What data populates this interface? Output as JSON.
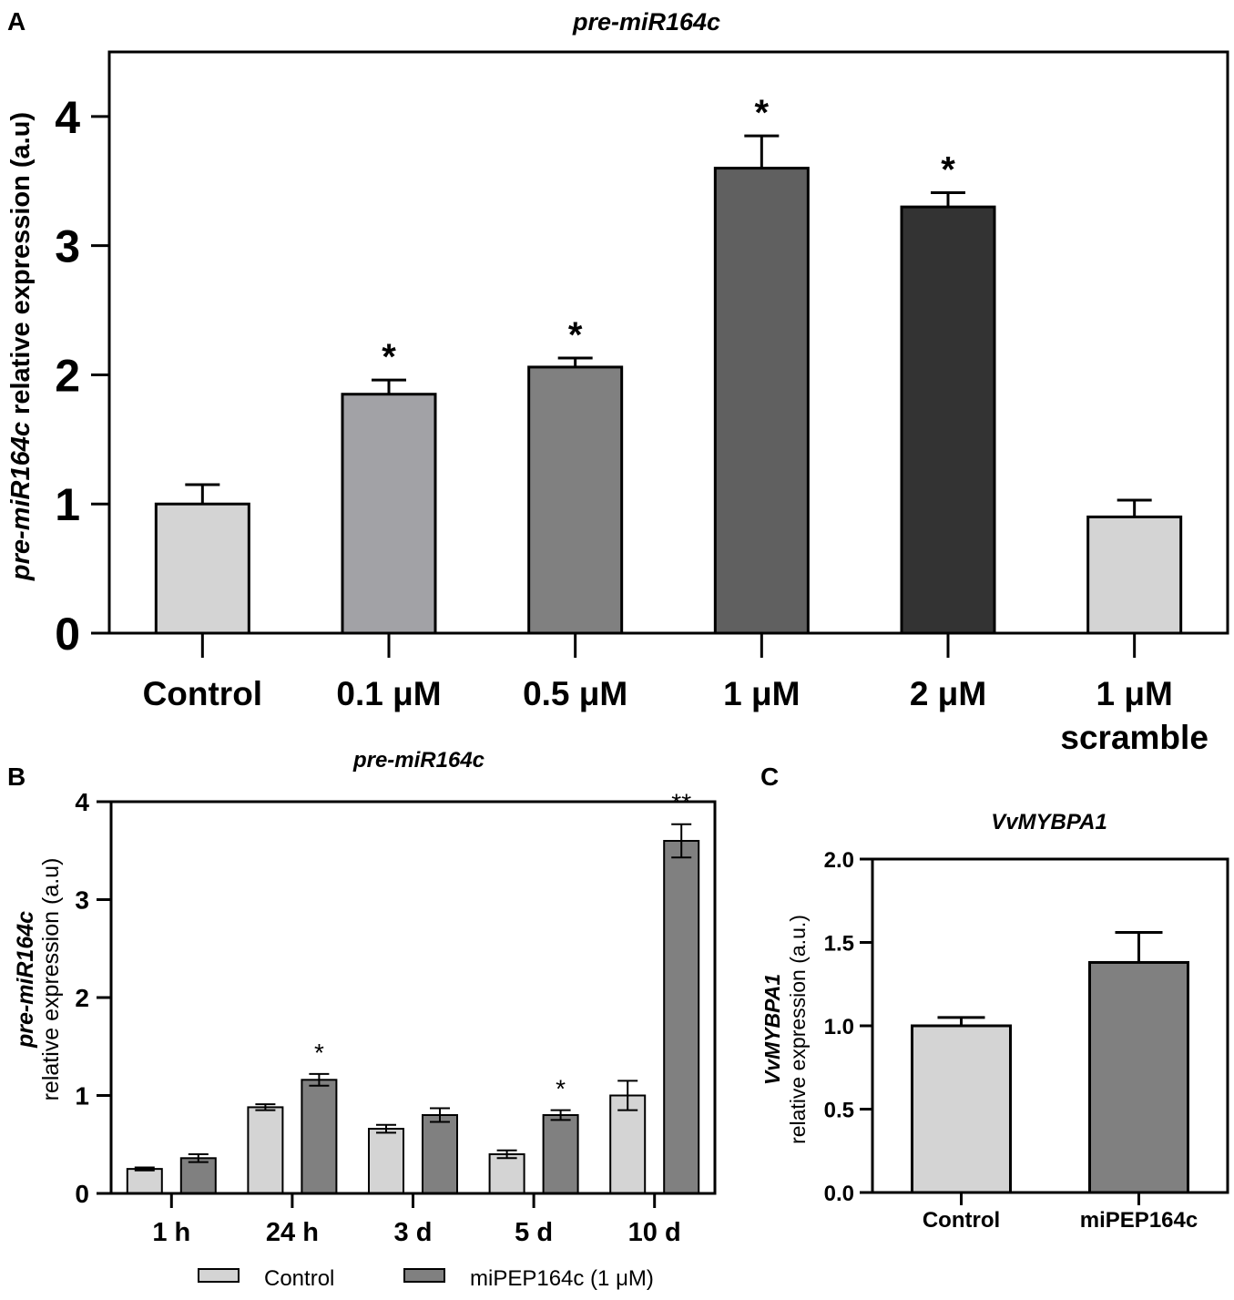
{
  "colors": {
    "light": "#d4d4d4",
    "gray1": "#a2a2a6",
    "gray2": "#808080",
    "gray3": "#606060",
    "dark": "#333333",
    "axis": "#000000"
  },
  "chart_data": [
    {
      "panel": "A",
      "type": "bar",
      "title": "pre-miR164c",
      "ylabel_italic": "pre-miR164c",
      "ylabel_rest": " relative expression (a.u)",
      "xlabel": "",
      "ylim": [
        0,
        4.5
      ],
      "yticks": [
        0,
        1,
        2,
        3,
        4
      ],
      "categories": [
        "Control",
        "0.1 μM",
        "0.5 μM",
        "1 μM",
        "2 μM",
        "1 μM|scramble"
      ],
      "values": [
        1.0,
        1.85,
        2.06,
        3.6,
        3.3,
        0.9
      ],
      "errors": [
        0.15,
        0.11,
        0.07,
        0.25,
        0.11,
        0.13
      ],
      "annotations": [
        "",
        "*",
        "*",
        "*",
        "*",
        ""
      ],
      "bar_colors": [
        "light",
        "gray1",
        "gray2",
        "gray3",
        "dark",
        "light"
      ]
    },
    {
      "panel": "B",
      "type": "bar",
      "title": "pre-miR164c",
      "ylabel_italic": "pre-miR164c",
      "ylabel_rest": "relative expression (a.u)",
      "xlabel": "",
      "ylim": [
        0,
        4
      ],
      "yticks": [
        0,
        1,
        2,
        3,
        4
      ],
      "categories": [
        "1 h",
        "24 h",
        "3 d",
        "5 d",
        "10 d"
      ],
      "series": [
        {
          "name": "Control",
          "color": "light",
          "values": [
            0.25,
            0.88,
            0.66,
            0.4,
            1.0
          ],
          "errors": [
            0.015,
            0.03,
            0.04,
            0.04,
            0.15
          ]
        },
        {
          "name": "miPEP164c (1 μM)",
          "color": "gray2",
          "values": [
            0.36,
            1.16,
            0.8,
            0.8,
            3.6
          ],
          "errors": [
            0.04,
            0.06,
            0.07,
            0.05,
            0.17
          ]
        }
      ],
      "annotations": [
        "",
        "*",
        "",
        "*",
        "**"
      ],
      "legend_position": "bottom"
    },
    {
      "panel": "C",
      "type": "bar",
      "title": "VvMYBPA1",
      "ylabel_italic": "VvMYBPA1",
      "ylabel_rest": "relative expression (a.u.)",
      "xlabel": "",
      "ylim": [
        0,
        2
      ],
      "yticks": [
        "0.0",
        "0.5",
        "1.0",
        "1.5",
        "2.0"
      ],
      "categories": [
        "Control",
        "miPEP164c"
      ],
      "values": [
        1.0,
        1.38
      ],
      "errors": [
        0.05,
        0.18
      ],
      "annotations": [
        "",
        ""
      ],
      "bar_colors": [
        "light",
        "gray2"
      ]
    }
  ]
}
